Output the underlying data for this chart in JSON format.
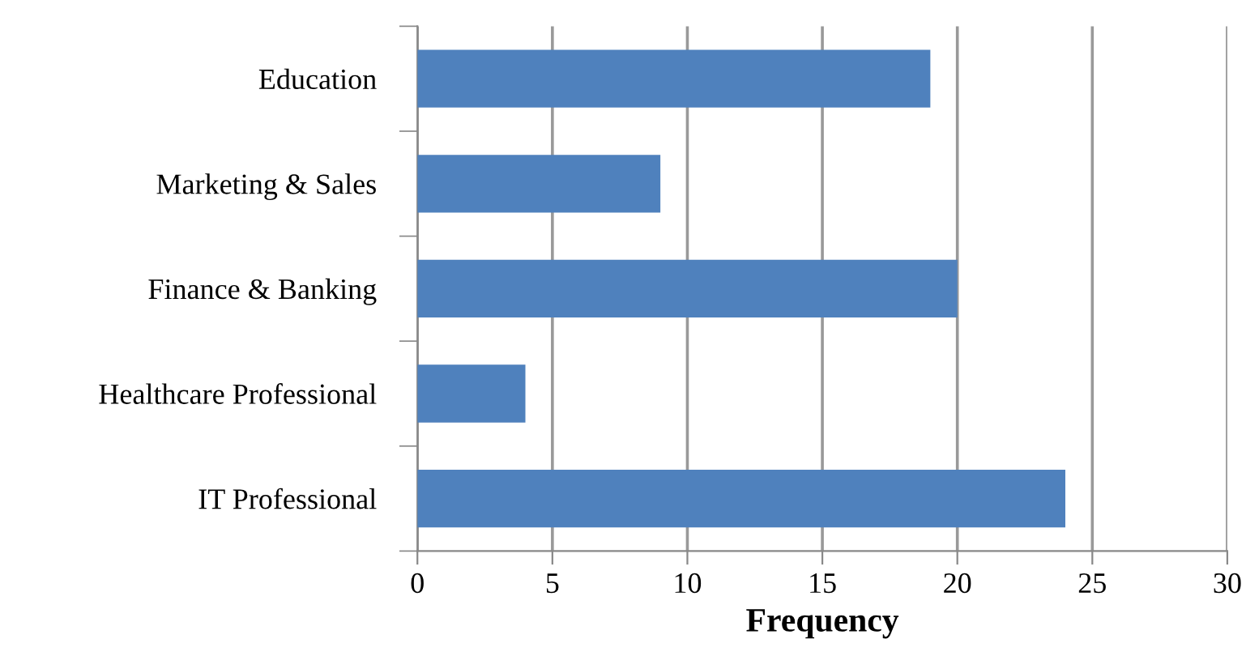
{
  "chart_data": {
    "type": "bar",
    "orientation": "horizontal",
    "xlabel": "Frequency",
    "categories": [
      "Education",
      "Marketing & Sales",
      "Finance & Banking",
      "Healthcare Professional",
      "IT Professional"
    ],
    "values": [
      19,
      9,
      20,
      4,
      24
    ],
    "color": "#4f81bd",
    "xlim": [
      0,
      30
    ],
    "xticks": [
      0,
      5,
      10,
      15,
      20,
      25,
      30
    ],
    "grid": "x"
  }
}
